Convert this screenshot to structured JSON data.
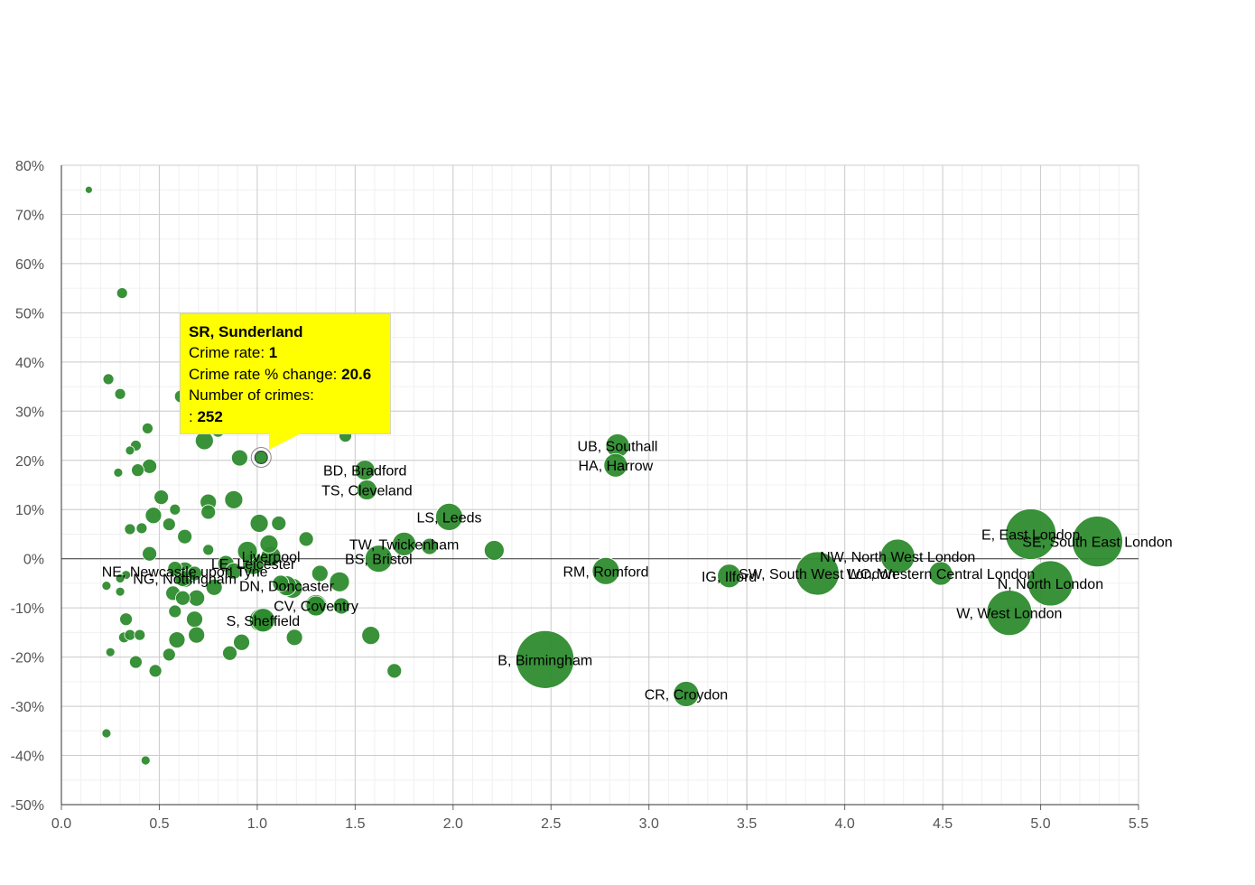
{
  "chart_data": {
    "type": "scatter",
    "title": "",
    "xlabel": "",
    "ylabel": "",
    "xlim": [
      0,
      5.5
    ],
    "ylim": [
      -50,
      80
    ],
    "x_ticks": [
      "0.0",
      "0.5",
      "1.0",
      "1.5",
      "2.0",
      "2.5",
      "3.0",
      "3.5",
      "4.0",
      "4.5",
      "5.0",
      "5.5"
    ],
    "y_ticks": [
      "80%",
      "70%",
      "60%",
      "50%",
      "40%",
      "30%",
      "20%",
      "10%",
      "0%",
      "-10%",
      "-20%",
      "-30%",
      "-40%",
      "-50%"
    ],
    "grid": true,
    "marker_color": "#2e8b2e",
    "points": [
      {
        "x": 0.14,
        "y": 75,
        "size": 4
      },
      {
        "x": 0.31,
        "y": 54,
        "size": 6
      },
      {
        "x": 0.24,
        "y": 36.5,
        "size": 6
      },
      {
        "x": 0.3,
        "y": 33.5,
        "size": 6
      },
      {
        "x": 0.44,
        "y": 26.5,
        "size": 6
      },
      {
        "x": 0.38,
        "y": 23,
        "size": 6
      },
      {
        "x": 0.35,
        "y": 22,
        "size": 5
      },
      {
        "x": 0.29,
        "y": 17.5,
        "size": 5
      },
      {
        "x": 0.39,
        "y": 18,
        "size": 7
      },
      {
        "x": 0.45,
        "y": 18.8,
        "size": 8
      },
      {
        "x": 0.61,
        "y": 33,
        "size": 7
      },
      {
        "x": 0.73,
        "y": 24,
        "size": 10
      },
      {
        "x": 0.8,
        "y": 26,
        "size": 7
      },
      {
        "x": 0.91,
        "y": 20.5,
        "size": 9
      },
      {
        "x": 1.45,
        "y": 25,
        "size": 7
      },
      {
        "x": 0.51,
        "y": 12.5,
        "size": 8
      },
      {
        "x": 0.58,
        "y": 10,
        "size": 6
      },
      {
        "x": 0.75,
        "y": 11.5,
        "size": 9
      },
      {
        "x": 0.88,
        "y": 12,
        "size": 10
      },
      {
        "x": 0.47,
        "y": 8.8,
        "size": 9
      },
      {
        "x": 0.55,
        "y": 7,
        "size": 7
      },
      {
        "x": 0.35,
        "y": 6,
        "size": 6
      },
      {
        "x": 0.41,
        "y": 6.2,
        "size": 6
      },
      {
        "x": 0.63,
        "y": 4.5,
        "size": 8
      },
      {
        "x": 0.75,
        "y": 9.5,
        "size": 8
      },
      {
        "x": 1.01,
        "y": 7.2,
        "size": 10
      },
      {
        "x": 1.11,
        "y": 7.2,
        "size": 8
      },
      {
        "x": 1.25,
        "y": 4,
        "size": 8
      },
      {
        "x": 1.06,
        "y": 3,
        "size": 10
      },
      {
        "x": 0.45,
        "y": 1,
        "size": 8
      },
      {
        "x": 0.75,
        "y": 1.8,
        "size": 6
      },
      {
        "x": 0.95,
        "y": 1.5,
        "size": 11
      },
      {
        "x": 0.84,
        "y": -1,
        "size": 9
      },
      {
        "x": 0.58,
        "y": -2,
        "size": 8
      },
      {
        "x": 0.33,
        "y": -3.3,
        "size": 5
      },
      {
        "x": 0.3,
        "y": -4,
        "size": 5
      },
      {
        "x": 0.23,
        "y": -5.5,
        "size": 5
      },
      {
        "x": 0.3,
        "y": -6.7,
        "size": 5
      },
      {
        "x": 0.62,
        "y": -4,
        "size": 9
      },
      {
        "x": 0.68,
        "y": -3,
        "size": 8
      },
      {
        "x": 0.88,
        "y": -2.5,
        "size": 9
      },
      {
        "x": 1.12,
        "y": -5,
        "size": 9
      },
      {
        "x": 1.18,
        "y": -6,
        "size": 11
      },
      {
        "x": 1.32,
        "y": -3,
        "size": 9
      },
      {
        "x": 1.42,
        "y": -4.7,
        "size": 11
      },
      {
        "x": 0.78,
        "y": -5.8,
        "size": 9
      },
      {
        "x": 0.57,
        "y": -7,
        "size": 8
      },
      {
        "x": 0.62,
        "y": -8,
        "size": 8
      },
      {
        "x": 0.69,
        "y": -8,
        "size": 9
      },
      {
        "x": 0.58,
        "y": -10.7,
        "size": 7
      },
      {
        "x": 0.68,
        "y": -12.3,
        "size": 9
      },
      {
        "x": 0.33,
        "y": -12.3,
        "size": 7
      },
      {
        "x": 1.3,
        "y": -9.6,
        "size": 11
      },
      {
        "x": 1.43,
        "y": -9.6,
        "size": 9
      },
      {
        "x": 1.02,
        "y": -12.5,
        "size": 13
      },
      {
        "x": 0.32,
        "y": -16,
        "size": 6
      },
      {
        "x": 0.35,
        "y": -15.5,
        "size": 6
      },
      {
        "x": 0.4,
        "y": -15.5,
        "size": 6
      },
      {
        "x": 0.59,
        "y": -16.5,
        "size": 9
      },
      {
        "x": 0.69,
        "y": -15.5,
        "size": 9
      },
      {
        "x": 0.92,
        "y": -17,
        "size": 9
      },
      {
        "x": 1.19,
        "y": -16,
        "size": 9
      },
      {
        "x": 1.58,
        "y": -15.6,
        "size": 10
      },
      {
        "x": 0.25,
        "y": -19,
        "size": 5
      },
      {
        "x": 0.38,
        "y": -21,
        "size": 7
      },
      {
        "x": 0.55,
        "y": -19.5,
        "size": 7
      },
      {
        "x": 0.86,
        "y": -19.2,
        "size": 8
      },
      {
        "x": 0.48,
        "y": -22.8,
        "size": 7
      },
      {
        "x": 1.7,
        "y": -22.8,
        "size": 8
      },
      {
        "x": 0.23,
        "y": -35.5,
        "size": 5
      },
      {
        "x": 0.43,
        "y": -41,
        "size": 5
      },
      {
        "x": 1.88,
        "y": 2.5,
        "size": 9
      },
      {
        "x": 2.21,
        "y": 1.7,
        "size": 11
      },
      {
        "x": 1.02,
        "y": 20.6,
        "size": 7,
        "highlight": true
      },
      {
        "x": 2.84,
        "y": 23,
        "size": 13,
        "label": "UB, Southall"
      },
      {
        "x": 2.83,
        "y": 19,
        "size": 13,
        "label": "HA, Harrow"
      },
      {
        "x": 1.55,
        "y": 18,
        "size": 11,
        "label": "BD, Bradford"
      },
      {
        "x": 1.56,
        "y": 14,
        "size": 11,
        "label": "TS, Cleveland"
      },
      {
        "x": 1.98,
        "y": 8.5,
        "size": 15,
        "label": "LS, Leeds"
      },
      {
        "x": 1.75,
        "y": 3,
        "size": 13,
        "label": "TW, Twickenham"
      },
      {
        "x": 1.62,
        "y": 0,
        "size": 15,
        "label": "BS, Bristol"
      },
      {
        "x": 1.07,
        "y": 0.5,
        "size": 11,
        "label": "Liverpool"
      },
      {
        "x": 0.98,
        "y": -1,
        "size": 12,
        "label": "LE, Leicester"
      },
      {
        "x": 0.63,
        "y": -2.5,
        "size": 10,
        "label": "NE, Newcastle upon Tyne"
      },
      {
        "x": 0.63,
        "y": -4,
        "size": 10,
        "label": "NG, Nottingham"
      },
      {
        "x": 1.15,
        "y": -5.5,
        "size": 11,
        "label": "DN, Doncaster"
      },
      {
        "x": 1.3,
        "y": -9.5,
        "size": 12,
        "label": "CV, Coventry"
      },
      {
        "x": 1.03,
        "y": -12.5,
        "size": 13,
        "label": "S, Sheffield"
      },
      {
        "x": 2.78,
        "y": -2.5,
        "size": 15,
        "label": "RM, Romford"
      },
      {
        "x": 3.41,
        "y": -3.5,
        "size": 13,
        "label": "IG, Ilford"
      },
      {
        "x": 3.86,
        "y": -3,
        "size": 24,
        "label": "SW, South West London"
      },
      {
        "x": 4.27,
        "y": 0.5,
        "size": 19,
        "label": "NW, North West London"
      },
      {
        "x": 4.49,
        "y": -3,
        "size": 13,
        "label": "WC, Western Central London"
      },
      {
        "x": 4.95,
        "y": 5,
        "size": 28,
        "label": "E, East London"
      },
      {
        "x": 5.29,
        "y": 3.5,
        "size": 28,
        "label": "SE, South East London"
      },
      {
        "x": 5.05,
        "y": -5,
        "size": 25,
        "label": "N, North London"
      },
      {
        "x": 4.84,
        "y": -11,
        "size": 25,
        "label": "W, West London"
      },
      {
        "x": 2.47,
        "y": -20.5,
        "size": 32,
        "label": "B, Birmingham"
      },
      {
        "x": 3.19,
        "y": -27.5,
        "size": 14,
        "label": "CR, Croydon"
      }
    ]
  },
  "tooltip": {
    "title": "SR, Sunderland",
    "crime_rate_label": "Crime rate: ",
    "crime_rate_value": "1",
    "change_label": "Crime rate % change: ",
    "change_value": "20.6",
    "count_label": "Number of crimes:",
    "count_prefix": ": ",
    "count_value": "252",
    "background": "#ffff00"
  }
}
